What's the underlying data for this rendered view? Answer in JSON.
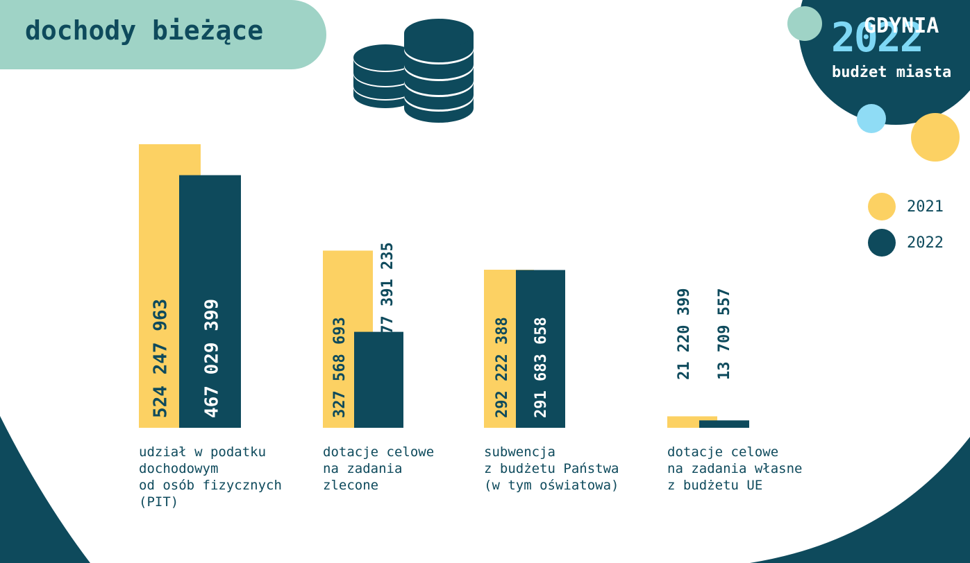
{
  "header": {
    "title": "dochody bieżące"
  },
  "brand": {
    "city": "GDYNIA",
    "year": "2022",
    "subtitle": "budżet miasta"
  },
  "colors": {
    "y2021": "#fcd163",
    "y2022": "#0e4a5c",
    "mint": "#9fd3c6",
    "sky": "#8fdcf5",
    "text": "#0e4a5c"
  },
  "icons": {
    "coins": "coins-stack-icon"
  },
  "legend": [
    {
      "label": "2021",
      "color": "#fcd163"
    },
    {
      "label": "2022",
      "color": "#0e4a5c"
    }
  ],
  "chart_data": {
    "type": "bar",
    "categories": [
      "udział w podatku\ndochodowym\nod osób fizycznych\n(PIT)",
      "dotacje celowe\nna zadania\nzlecone",
      "subwencja\nz budżetu Państwa\n(w tym oświatowa)",
      "dotacje celowe\nna zadania własne\nz budżetu UE"
    ],
    "series": [
      {
        "name": "2021",
        "values": [
          524247963,
          327568693,
          292222388,
          21220399
        ],
        "labels": [
          "524 247 963",
          "327 568 693",
          "292 222 388",
          "21 220 399"
        ]
      },
      {
        "name": "2022",
        "values": [
          467029399,
          177391235,
          291683658,
          13709557
        ],
        "labels": [
          "467 029 399",
          "177 391 235",
          "291 683 658",
          "13 709 557"
        ]
      }
    ]
  }
}
